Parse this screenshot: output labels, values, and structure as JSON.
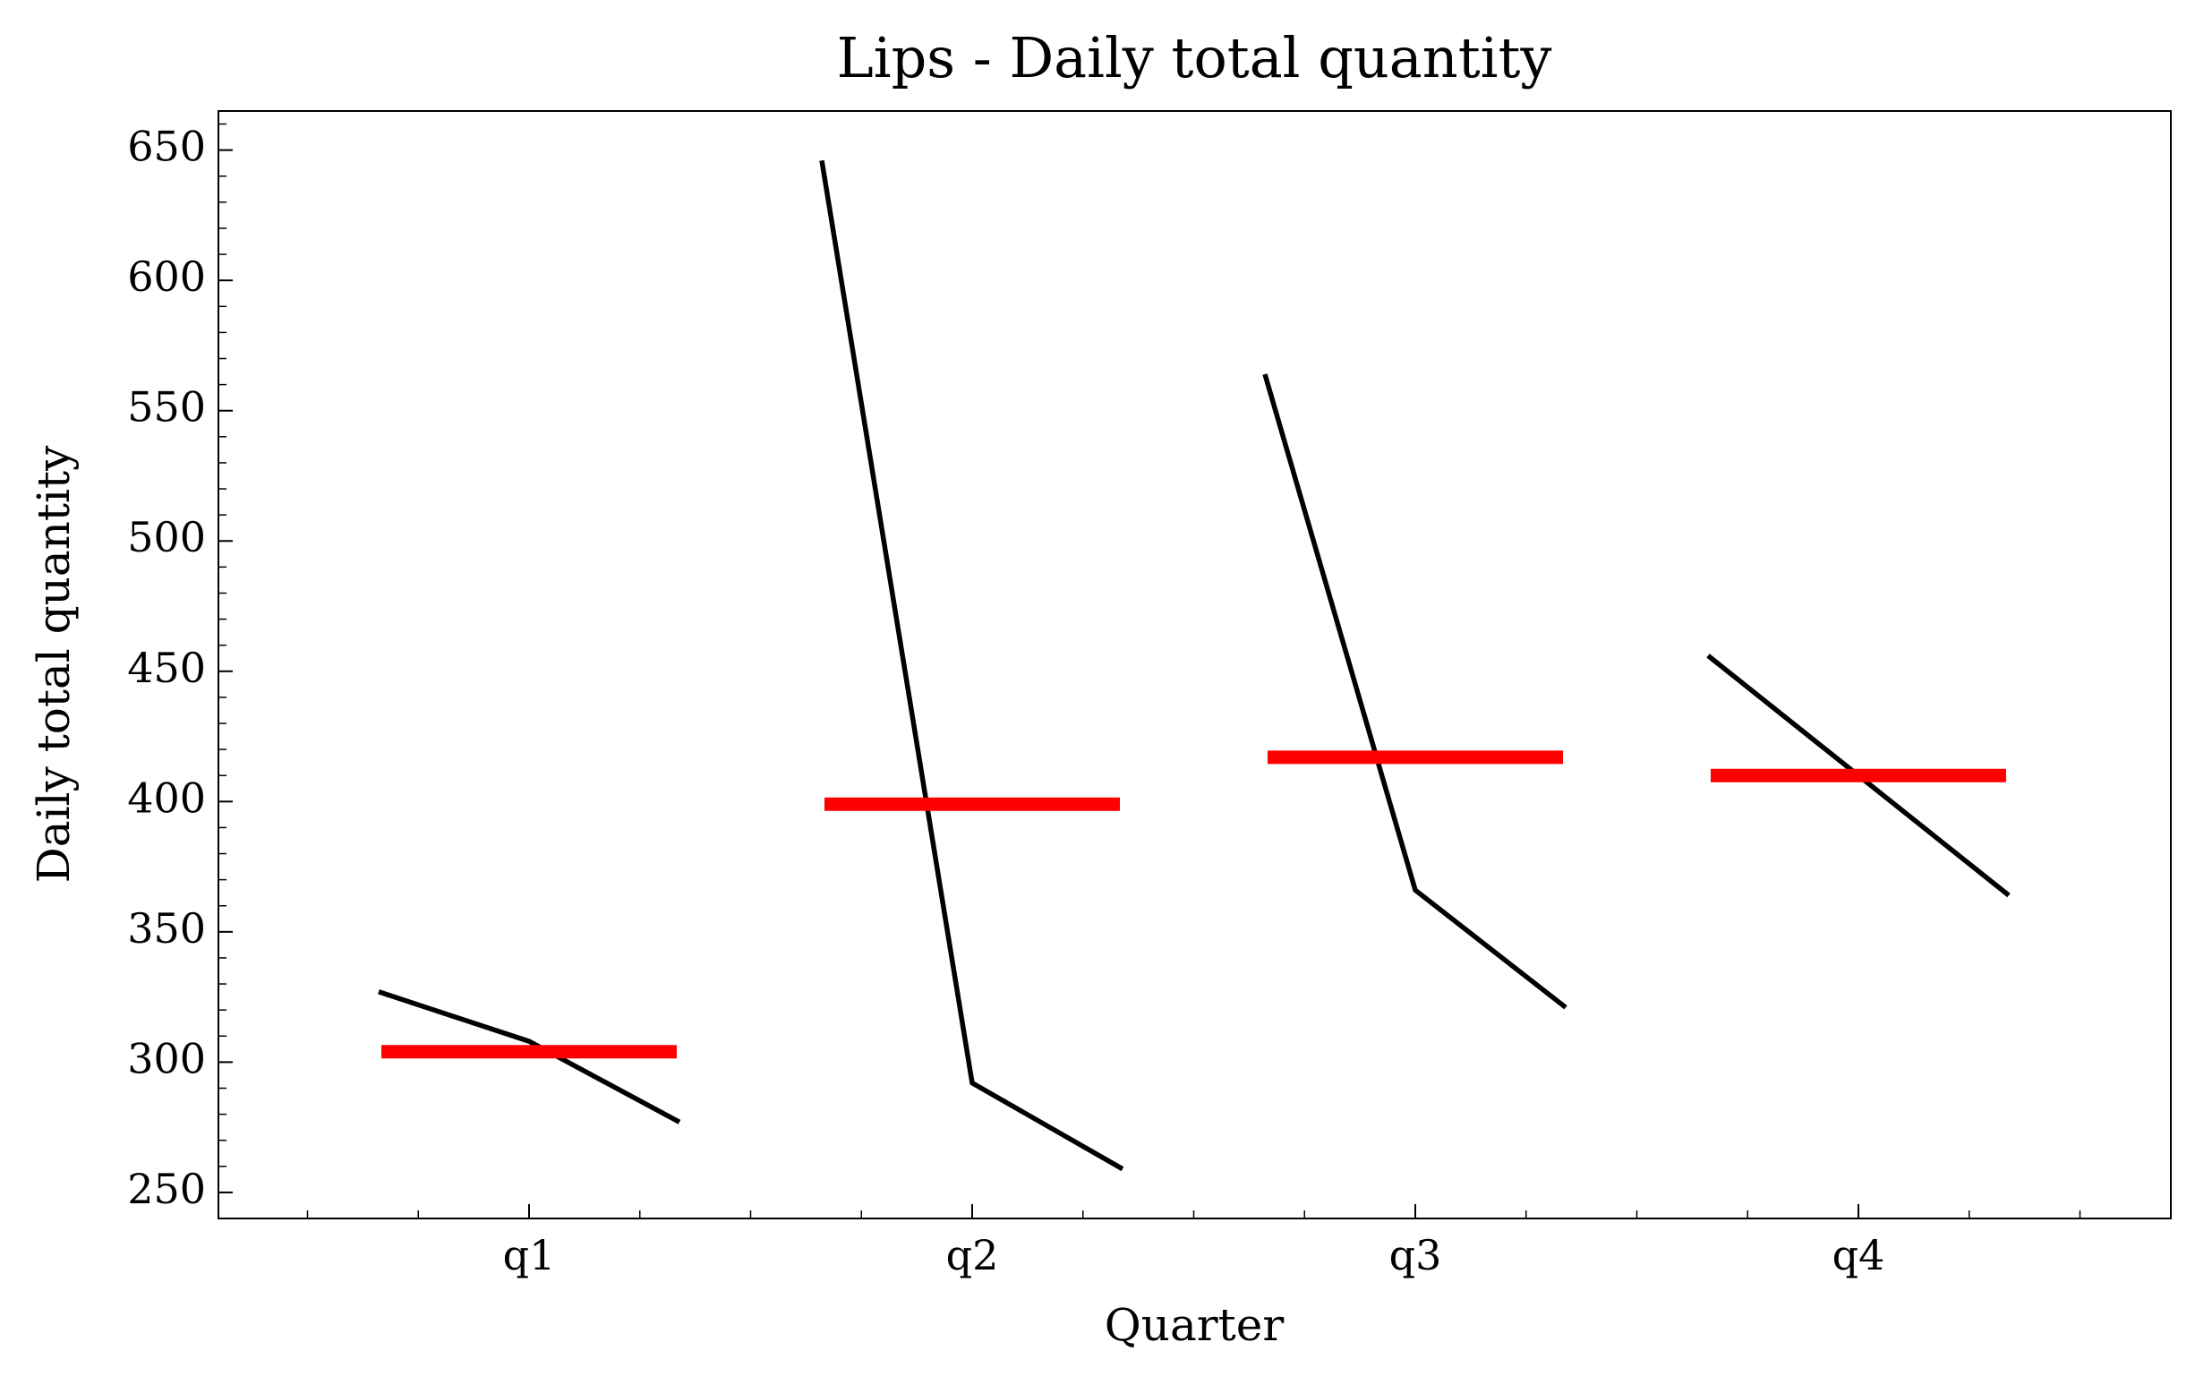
{
  "chart_data": {
    "type": "seasonal",
    "title": "Lips - Daily total quantity",
    "xlabel": "Quarter",
    "ylabel": "Daily total quantity",
    "categories": [
      "q1",
      "q2",
      "q3",
      "q4"
    ],
    "values": [
      [
        327,
        308,
        277
      ],
      [
        646,
        292,
        259
      ],
      [
        564,
        366,
        321
      ],
      [
        456,
        410,
        364
      ]
    ],
    "means": [
      304,
      399,
      417,
      410
    ],
    "line_color": "#000000",
    "mean_color": "#ff0000",
    "ylim": [
      240,
      665
    ],
    "yticks": [
      250,
      300,
      350,
      400,
      450,
      500,
      550,
      600,
      650
    ]
  }
}
